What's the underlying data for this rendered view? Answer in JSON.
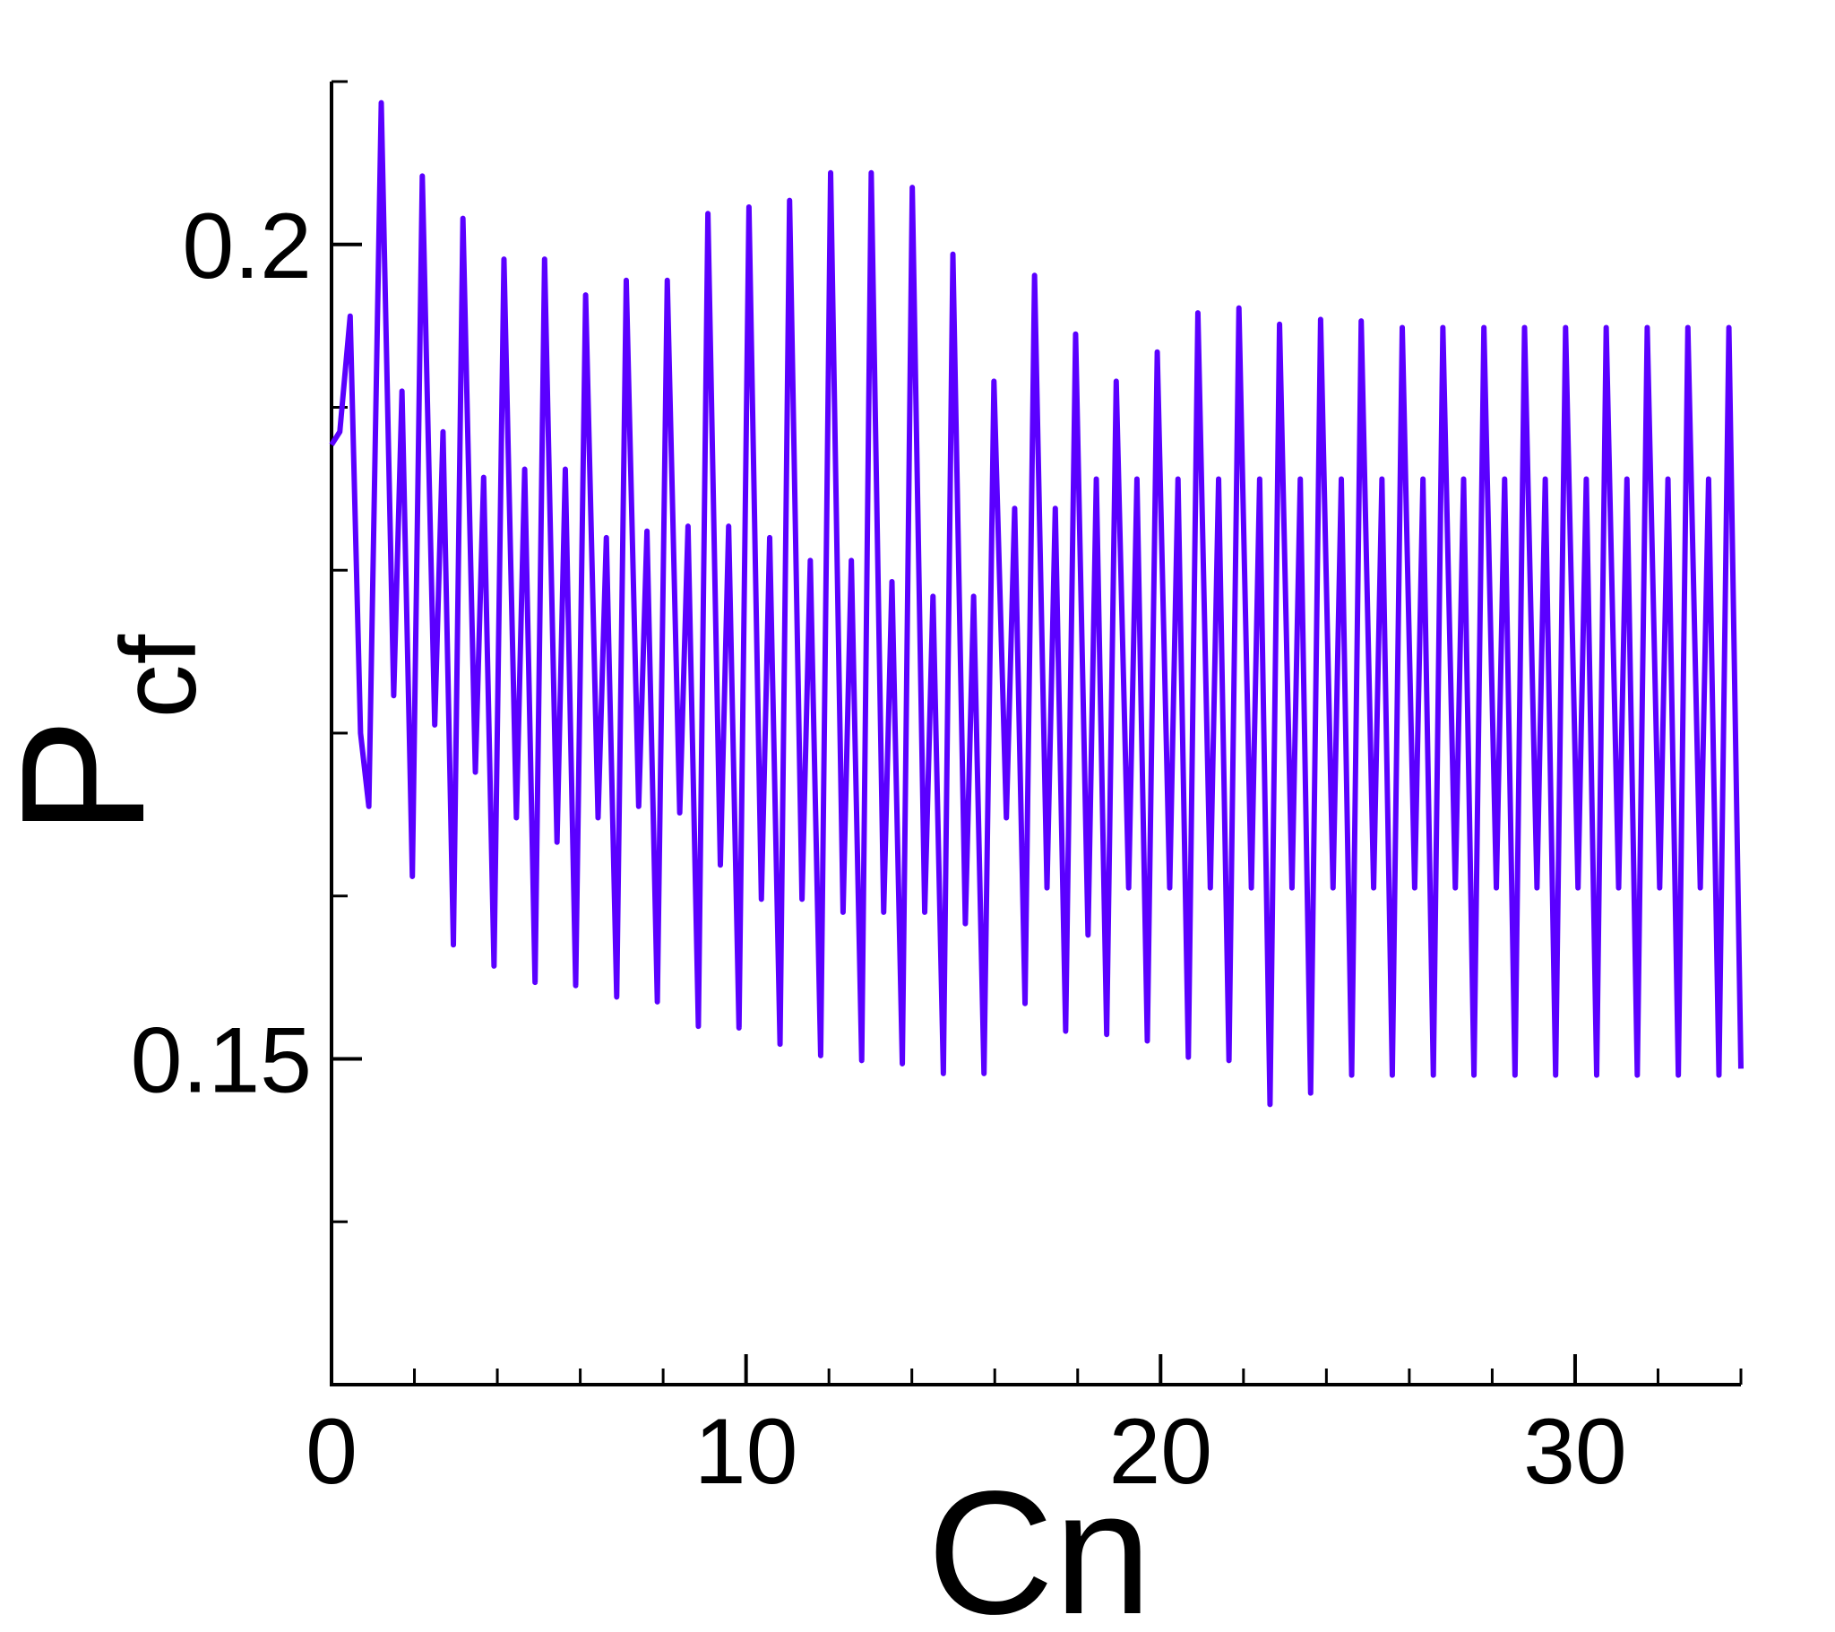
{
  "chart_data": {
    "type": "line",
    "x_label": "Cn",
    "y_label": "P",
    "y_label_subscript": "cf",
    "xlim": [
      0,
      34
    ],
    "ylim": [
      0.13,
      0.21
    ],
    "xticks": [
      0,
      10,
      20,
      30
    ],
    "xminorticks": [
      2,
      4,
      6,
      8,
      12,
      14,
      16,
      18,
      22,
      24,
      26,
      28,
      32,
      34
    ],
    "yticks": [
      0.15,
      0.2
    ],
    "yminorticks": [
      0.13,
      0.14,
      0.16,
      0.17,
      0.18,
      0.19,
      0.21
    ],
    "grid": false,
    "series": [
      {
        "name": "Pcf",
        "color": "#5a00ff",
        "x": [
          0,
          0.2,
          0.45,
          0.7,
          0.9,
          1.2,
          1.5,
          1.7,
          1.95,
          2.19,
          2.49,
          2.69,
          2.94,
          3.17,
          3.47,
          3.67,
          3.92,
          4.16,
          4.46,
          4.66,
          4.91,
          5.14,
          5.44,
          5.64,
          5.89,
          6.13,
          6.43,
          6.63,
          6.88,
          7.11,
          7.41,
          7.61,
          7.86,
          8.1,
          8.4,
          8.6,
          8.85,
          9.08,
          9.38,
          9.58,
          9.83,
          10.07,
          10.37,
          10.57,
          10.82,
          11.05,
          11.35,
          11.55,
          11.8,
          12.04,
          12.34,
          12.54,
          12.79,
          13.02,
          13.32,
          13.52,
          13.77,
          14.01,
          14.31,
          14.51,
          14.76,
          14.99,
          15.29,
          15.49,
          15.74,
          15.98,
          16.28,
          16.48,
          16.73,
          16.96,
          17.26,
          17.46,
          17.71,
          17.95,
          18.25,
          18.45,
          18.7,
          18.93,
          19.23,
          19.43,
          19.68,
          19.92,
          20.22,
          20.42,
          20.67,
          20.9,
          21.2,
          21.4,
          21.65,
          21.89,
          22.19,
          22.39,
          22.64,
          22.87,
          23.17,
          23.37,
          23.62,
          23.86,
          24.16,
          24.36,
          24.61,
          24.84,
          25.14,
          25.34,
          25.59,
          25.83,
          26.13,
          26.33,
          26.58,
          26.81,
          27.11,
          27.31,
          27.56,
          27.8,
          28.1,
          28.3,
          28.55,
          28.78,
          29.08,
          29.28,
          29.53,
          29.77,
          30.07,
          30.27,
          30.52,
          30.75,
          31.05,
          31.25,
          31.5,
          31.74,
          32.04,
          32.24,
          32.49,
          32.72,
          33.02,
          33.22,
          33.47,
          33.71,
          34
        ],
        "values": [
          0.1877,
          0.1885,
          0.1956,
          0.17,
          0.1655,
          0.2087,
          0.1723,
          0.191,
          0.1612,
          0.2042,
          0.1705,
          0.1885,
          0.157,
          0.2016,
          0.1676,
          0.1857,
          0.1557,
          0.1991,
          0.1648,
          0.1862,
          0.1547,
          0.1991,
          0.1633,
          0.1862,
          0.1545,
          0.1969,
          0.1648,
          0.182,
          0.1538,
          0.1978,
          0.1655,
          0.1824,
          0.1535,
          0.1978,
          0.1651,
          0.1827,
          0.152,
          0.2019,
          0.1619,
          0.1827,
          0.1519,
          0.2023,
          0.1598,
          0.182,
          0.1509,
          0.2027,
          0.1598,
          0.1806,
          0.1502,
          0.2044,
          0.159,
          0.1806,
          0.1499,
          0.2044,
          0.159,
          0.1793,
          0.1497,
          0.2035,
          0.159,
          0.1784,
          0.1491,
          0.1994,
          0.1583,
          0.1784,
          0.1491,
          0.1916,
          0.1648,
          0.1838,
          0.1534,
          0.1981,
          0.1605,
          0.1838,
          0.1517,
          0.1945,
          0.1576,
          0.1856,
          0.1515,
          0.1916,
          0.1605,
          0.1856,
          0.1511,
          0.1934,
          0.1605,
          0.1856,
          0.1501,
          0.1958,
          0.1605,
          0.1856,
          0.1499,
          0.1961,
          0.1605,
          0.1856,
          0.1472,
          0.1951,
          0.1605,
          0.1856,
          0.1479,
          0.1954,
          0.1605,
          0.1856,
          0.149,
          0.1953,
          0.1605,
          0.1856,
          0.149,
          0.1949,
          0.1605,
          0.1856,
          0.149,
          0.1949,
          0.1605,
          0.1856,
          0.149,
          0.1949,
          0.1605,
          0.1856,
          0.149,
          0.1949,
          0.1605,
          0.1856,
          0.149,
          0.1949,
          0.1605,
          0.1856,
          0.149,
          0.1949,
          0.1605,
          0.1856,
          0.149,
          0.1949,
          0.1605,
          0.1856,
          0.149,
          0.1949,
          0.1605,
          0.1856,
          0.149,
          0.1949,
          0.1494
        ]
      }
    ]
  }
}
